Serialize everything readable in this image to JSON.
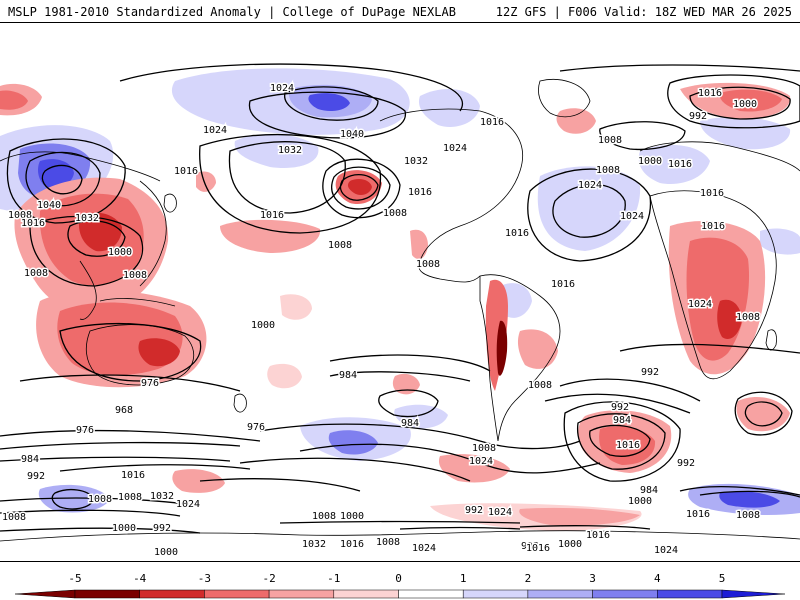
{
  "header": {
    "left": "MSLP 1981-2010 Standardized Anomaly | College of DuPage NEXLAB",
    "right": "12Z GFS | F006 Valid: 18Z WED MAR 26 2025"
  },
  "colors": {
    "neg5": "#7a0000",
    "neg4": "#d12b2b",
    "neg3": "#ee6b6b",
    "neg2": "#f7a2a2",
    "neg1": "#fcd3d3",
    "zero": "#ffffff",
    "pos1": "#d6d6fb",
    "pos2": "#aeaef5",
    "pos3": "#7f7fef",
    "pos4": "#4b4be6",
    "pos5": "#1d1dd6",
    "coast": "#000000",
    "isobar": "#000000"
  },
  "colorbar": {
    "ticks": [
      "-5",
      "-4",
      "-3",
      "-2",
      "-1",
      "0",
      "1",
      "2",
      "3",
      "4",
      "5"
    ]
  },
  "isobar_labels": [
    "1024",
    "1016",
    "1000",
    "992",
    "1024",
    "1040",
    "1032",
    "1016",
    "1024",
    "1032",
    "1016",
    "1008",
    "1000",
    "1016",
    "1024",
    "1040",
    "1032",
    "1008",
    "1016",
    "1000",
    "1008",
    "1008",
    "1016",
    "1024",
    "1008",
    "1016",
    "1016",
    "1008",
    "1016",
    "1008",
    "1008",
    "1016",
    "1024",
    "1016",
    "1008",
    "1000",
    "992",
    "984",
    "968",
    "976",
    "1008",
    "992",
    "984",
    "1016",
    "992",
    "984",
    "1000",
    "1008",
    "1024",
    "984",
    "976",
    "976",
    "984",
    "992",
    "1016",
    "1032",
    "1024",
    "1008",
    "1000",
    "992",
    "1024",
    "1016",
    "1000",
    "992",
    "1024",
    "1008",
    "1016",
    "1032",
    "1024",
    "1016",
    "1008",
    "1000",
    "992",
    "1000",
    "1008",
    "1016",
    "1008",
    "1008"
  ]
}
